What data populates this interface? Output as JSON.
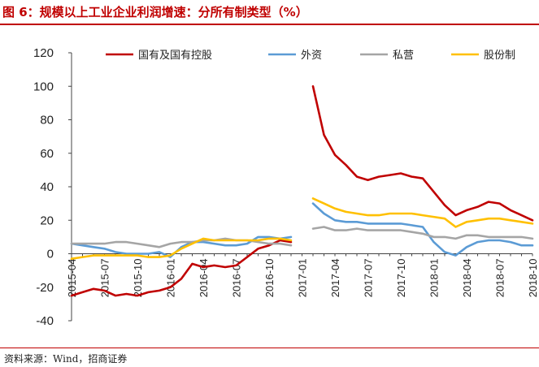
{
  "header": {
    "title": "图 6：规模以上工业企业利润增速：分所有制类型（%）"
  },
  "footer": {
    "source": "资料来源：Wind，招商证券"
  },
  "chart_data": {
    "type": "line",
    "title": "图 6：规模以上工业企业利润增速：分所有制类型（%）",
    "xlabel": "",
    "ylabel": "",
    "ylim": [
      -40,
      120
    ],
    "yticks": [
      -40,
      -20,
      0,
      20,
      40,
      60,
      80,
      100,
      120
    ],
    "grid": false,
    "legend_position": "top",
    "x_tick_labels": [
      "2015-04",
      "2015-07",
      "2015-10",
      "2016-01",
      "2016-04",
      "2016-07",
      "2016-10",
      "2017-01",
      "2017-04",
      "2017-07",
      "2017-10",
      "2018-01",
      "2018-04",
      "2018-07",
      "2018-10"
    ],
    "x": [
      "2015-04",
      "2015-05",
      "2015-06",
      "2015-07",
      "2015-08",
      "2015-09",
      "2015-10",
      "2015-11",
      "2015-12",
      "2016-01",
      "2016-02",
      "2016-03",
      "2016-04",
      "2016-05",
      "2016-06",
      "2016-07",
      "2016-08",
      "2016-09",
      "2016-10",
      "2016-11",
      "2016-12",
      "2017-01",
      "2017-02",
      "2017-03",
      "2017-04",
      "2017-05",
      "2017-06",
      "2017-07",
      "2017-08",
      "2017-09",
      "2017-10",
      "2017-11",
      "2017-12",
      "2018-01",
      "2018-02",
      "2018-03",
      "2018-04",
      "2018-05",
      "2018-06",
      "2018-07",
      "2018-08",
      "2018-09",
      "2018-10"
    ],
    "series": [
      {
        "name": "国有及国有控股",
        "color": "#c00000",
        "values": [
          -25,
          -23,
          -21,
          -22,
          -25,
          -24,
          -25,
          -23,
          -22,
          -20,
          -15,
          -6,
          -8,
          -7,
          -8,
          -7,
          -2,
          3,
          5,
          8,
          7,
          null,
          100,
          71,
          59,
          53,
          46,
          44,
          46,
          47,
          48,
          46,
          45,
          37,
          29,
          23,
          26,
          28,
          31,
          30,
          26,
          23,
          20
        ]
      },
      {
        "name": "外资",
        "color": "#5b9bd5",
        "values": [
          6,
          5,
          4,
          3,
          1,
          0,
          0,
          0,
          1,
          -2,
          4,
          7,
          7,
          6,
          5,
          5,
          6,
          10,
          10,
          9,
          10,
          null,
          30,
          24,
          20,
          19,
          19,
          18,
          18,
          18,
          18,
          17,
          16,
          7,
          1,
          -1,
          4,
          7,
          8,
          8,
          7,
          5,
          5
        ]
      },
      {
        "name": "私营",
        "color": "#a5a5a5",
        "values": [
          6,
          6,
          6,
          6,
          7,
          7,
          6,
          5,
          4,
          6,
          7,
          7,
          8,
          8,
          9,
          8,
          8,
          7,
          6,
          6,
          5,
          null,
          15,
          16,
          14,
          14,
          15,
          14,
          14,
          14,
          14,
          13,
          12,
          10,
          10,
          9,
          11,
          11,
          10,
          10,
          10,
          10,
          9
        ]
      },
      {
        "name": "股份制",
        "color": "#ffc000",
        "values": [
          -3,
          -2,
          -1,
          -1,
          -1,
          -1,
          -1,
          -2,
          -2,
          -1,
          3,
          6,
          9,
          8,
          8,
          8,
          8,
          8,
          9,
          9,
          8,
          null,
          33,
          30,
          27,
          25,
          24,
          23,
          23,
          24,
          24,
          24,
          23,
          22,
          21,
          16,
          19,
          20,
          21,
          21,
          20,
          19,
          18
        ]
      }
    ]
  }
}
